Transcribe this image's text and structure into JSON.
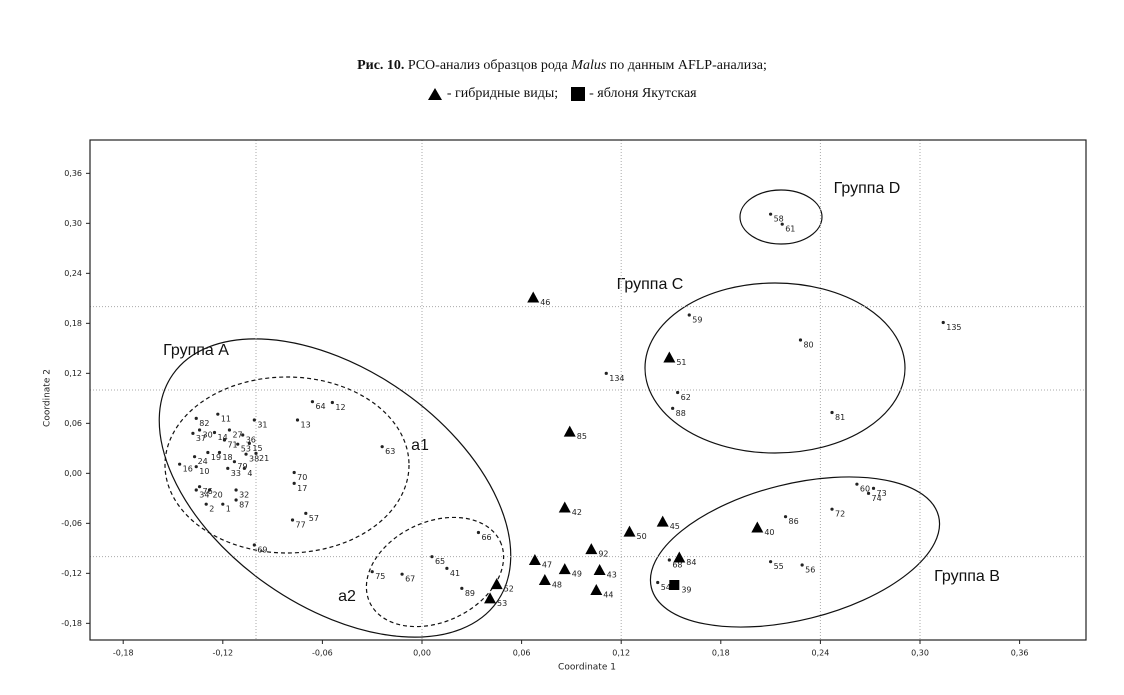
{
  "chart_data": {
    "type": "scatter",
    "title": {
      "bold": "Рис. 10.",
      "before": "PCO-анализ образцов рода",
      "italic": "Malus",
      "after": "по данным AFLP-анализа;"
    },
    "x_label": "Coordinate 1",
    "y_label": "Coordinate 2",
    "xlim": [
      -0.2,
      0.4
    ],
    "ylim": [
      -0.2,
      0.4
    ],
    "xticks": [
      {
        "value": -0.18,
        "label": "-0,18"
      },
      {
        "value": -0.12,
        "label": "-0,12"
      },
      {
        "value": -0.06,
        "label": "-0,06"
      },
      {
        "value": 0,
        "label": "0,00"
      },
      {
        "value": 0.06,
        "label": "0,06"
      },
      {
        "value": 0.12,
        "label": "0,12"
      },
      {
        "value": 0.18,
        "label": "0,18"
      },
      {
        "value": 0.24,
        "label": "0,24"
      },
      {
        "value": 0.3,
        "label": "0,30"
      },
      {
        "value": 0.36,
        "label": "0,36"
      }
    ],
    "yticks": [
      {
        "value": -0.18,
        "label": "-0,18"
      },
      {
        "value": -0.12,
        "label": "-0,12"
      },
      {
        "value": -0.06,
        "label": "-0,06"
      },
      {
        "value": 0,
        "label": "0,00"
      },
      {
        "value": 0.06,
        "label": "0,06"
      },
      {
        "value": 0.12,
        "label": "0,12"
      },
      {
        "value": 0.18,
        "label": "0,18"
      },
      {
        "value": 0.24,
        "label": "0,24"
      },
      {
        "value": 0.3,
        "label": "0,30"
      },
      {
        "value": 0.36,
        "label": "0,36"
      }
    ],
    "xgrid": [
      -0.1,
      0,
      0.12,
      0.24,
      0.3
    ],
    "ygrid": [
      0.2,
      0.1,
      -0.1
    ],
    "groups": {
      "a": "Группа A",
      "a1": "a1",
      "a2": "a2",
      "b": "Группа B",
      "c": "Группа C",
      "d": "Группа D"
    },
    "series": [
      {
        "marker": "dot",
        "color": "#222222",
        "labels": [
          "58",
          "61",
          "135",
          "59",
          "80",
          "134",
          "62",
          "88",
          "81",
          "60",
          "73",
          "74",
          "72",
          "86",
          "55",
          "56",
          "68",
          "54",
          "65",
          "41",
          "67",
          "75",
          "89",
          "66",
          "63",
          "64",
          "12",
          "13",
          "70",
          "17",
          "57",
          "77",
          "69",
          "82",
          "11",
          "31",
          "30",
          "37",
          "14",
          "27",
          "36",
          "15",
          "71",
          "53",
          "21",
          "19",
          "18",
          "38",
          "24",
          "16",
          "10",
          "79",
          "4",
          "33",
          "76",
          "34",
          "20",
          "32",
          "2",
          "1",
          "87"
        ],
        "x": [
          0.21,
          0.217,
          0.314,
          0.161,
          0.228,
          0.111,
          0.154,
          0.151,
          0.247,
          0.262,
          0.272,
          0.269,
          0.247,
          0.219,
          0.21,
          0.229,
          0.149,
          0.142,
          0.006,
          0.015,
          -0.012,
          -0.03,
          0.024,
          0.034,
          -0.024,
          -0.066,
          -0.054,
          -0.075,
          -0.077,
          -0.077,
          -0.07,
          -0.078,
          -0.101,
          -0.136,
          -0.123,
          -0.101,
          -0.134,
          -0.138,
          -0.125,
          -0.116,
          -0.108,
          -0.104,
          -0.119,
          -0.111,
          -0.1,
          -0.129,
          -0.122,
          -0.106,
          -0.137,
          -0.146,
          -0.136,
          -0.113,
          -0.107,
          -0.117,
          -0.134,
          -0.136,
          -0.128,
          -0.112,
          -0.13,
          -0.12,
          -0.112
        ],
        "y": [
          0.311,
          0.299,
          0.181,
          0.19,
          0.16,
          0.12,
          0.097,
          0.078,
          0.073,
          -0.013,
          -0.018,
          -0.024,
          -0.043,
          -0.052,
          -0.106,
          -0.11,
          -0.104,
          -0.131,
          -0.1,
          -0.114,
          -0.121,
          -0.118,
          -0.138,
          -0.071,
          0.032,
          0.086,
          0.085,
          0.064,
          0.001,
          -0.012,
          -0.048,
          -0.056,
          -0.086,
          0.066,
          0.071,
          0.064,
          0.052,
          0.048,
          0.049,
          0.052,
          0.046,
          0.036,
          0.04,
          0.035,
          0.024,
          0.025,
          0.025,
          0.023,
          0.02,
          0.011,
          0.008,
          0.014,
          0.006,
          0.006,
          -0.016,
          -0.02,
          -0.02,
          -0.02,
          -0.037,
          -0.037,
          -0.032
        ]
      },
      {
        "name": "- гибридные виды;",
        "marker": "triangle",
        "color": "#000000",
        "labels": [
          "46",
          "51",
          "85",
          "42",
          "50",
          "45",
          "40",
          "92",
          "47",
          "49",
          "43",
          "48",
          "44",
          "84",
          "52",
          "53"
        ],
        "x": [
          0.067,
          0.149,
          0.089,
          0.086,
          0.125,
          0.145,
          0.202,
          0.102,
          0.068,
          0.086,
          0.107,
          0.074,
          0.105,
          0.155,
          0.045,
          0.041
        ],
        "y": [
          0.211,
          0.139,
          0.05,
          -0.041,
          -0.07,
          -0.058,
          -0.065,
          -0.091,
          -0.104,
          -0.115,
          -0.116,
          -0.128,
          -0.14,
          -0.101,
          -0.133,
          -0.15
        ]
      },
      {
        "name": "- яблоня Якутская",
        "marker": "square",
        "color": "#000000",
        "labels": [
          "39"
        ],
        "x": [
          0.152
        ],
        "y": [
          -0.134
        ]
      }
    ]
  }
}
